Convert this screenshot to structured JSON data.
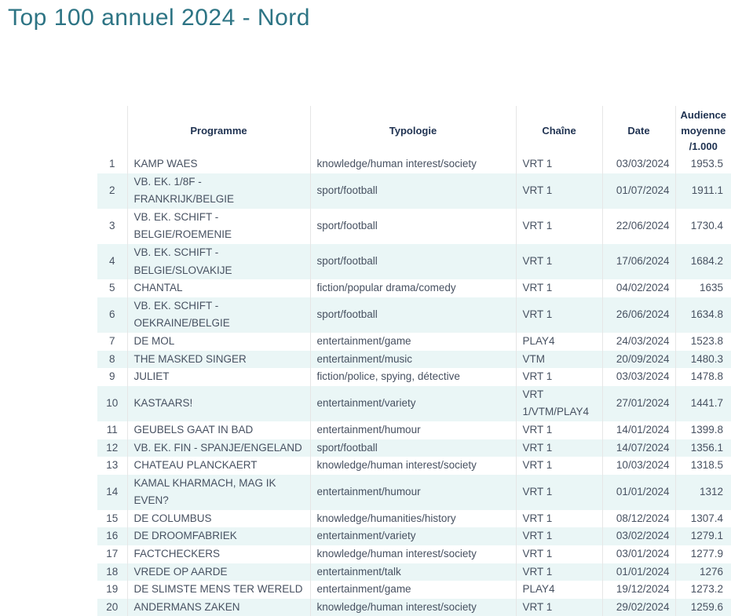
{
  "page": {
    "title": "Top 100 annuel 2024 - Nord"
  },
  "colors": {
    "title": "#2d7484",
    "header_text": "#1f3251",
    "body_text": "#475161",
    "row_alt_bg": "#eaf6f6",
    "column_border": "#e6e6e6"
  },
  "table": {
    "columns": [
      {
        "key": "rank",
        "label": ""
      },
      {
        "key": "programme",
        "label": "Programme"
      },
      {
        "key": "typologie",
        "label": "Typologie"
      },
      {
        "key": "chaine",
        "label": "Chaîne"
      },
      {
        "key": "date",
        "label": "Date"
      },
      {
        "key": "audience",
        "label": "Audience moyenne /1.000"
      }
    ],
    "rows": [
      {
        "rank": "1",
        "programme": "KAMP WAES",
        "typologie": "knowledge/human interest/society",
        "chaine": "VRT 1",
        "date": "03/03/2024",
        "audience": "1953.5"
      },
      {
        "rank": "2",
        "programme": "VB. EK. 1/8F -\nFRANKRIJK/BELGIE",
        "typologie": "sport/football",
        "chaine": "VRT 1",
        "date": "01/07/2024",
        "audience": "1911.1"
      },
      {
        "rank": "3",
        "programme": "VB. EK. SCHIFT -\nBELGIE/ROEMENIE",
        "typologie": "sport/football",
        "chaine": "VRT 1",
        "date": "22/06/2024",
        "audience": "1730.4"
      },
      {
        "rank": "4",
        "programme": "VB. EK. SCHIFT -\nBELGIE/SLOVAKIJE",
        "typologie": "sport/football",
        "chaine": "VRT 1",
        "date": "17/06/2024",
        "audience": "1684.2"
      },
      {
        "rank": "5",
        "programme": "CHANTAL",
        "typologie": "fiction/popular drama/comedy",
        "chaine": "VRT 1",
        "date": "04/02/2024",
        "audience": "1635"
      },
      {
        "rank": "6",
        "programme": "VB. EK. SCHIFT -\nOEKRAINE/BELGIE",
        "typologie": "sport/football",
        "chaine": "VRT 1",
        "date": "26/06/2024",
        "audience": "1634.8"
      },
      {
        "rank": "7",
        "programme": "DE MOL",
        "typologie": "entertainment/game",
        "chaine": "PLAY4",
        "date": "24/03/2024",
        "audience": "1523.8"
      },
      {
        "rank": "8",
        "programme": "THE MASKED SINGER",
        "typologie": "entertainment/music",
        "chaine": "VTM",
        "date": "20/09/2024",
        "audience": "1480.3"
      },
      {
        "rank": "9",
        "programme": "JULIET",
        "typologie": "fiction/police, spying, détective",
        "chaine": "VRT 1",
        "date": "03/03/2024",
        "audience": "1478.8"
      },
      {
        "rank": "10",
        "programme": "KASTAARS!",
        "typologie": "entertainment/variety",
        "chaine": "VRT\n1/VTM/PLAY4",
        "date": "27/01/2024",
        "audience": "1441.7"
      },
      {
        "rank": "11",
        "programme": "GEUBELS GAAT IN BAD",
        "typologie": "entertainment/humour",
        "chaine": "VRT 1",
        "date": "14/01/2024",
        "audience": "1399.8"
      },
      {
        "rank": "12",
        "programme": "VB. EK. FIN - SPANJE/ENGELAND",
        "typologie": "sport/football",
        "chaine": "VRT 1",
        "date": "14/07/2024",
        "audience": "1356.1"
      },
      {
        "rank": "13",
        "programme": "CHATEAU PLANCKAERT",
        "typologie": "knowledge/human interest/society",
        "chaine": "VRT 1",
        "date": "10/03/2024",
        "audience": "1318.5"
      },
      {
        "rank": "14",
        "programme": "KAMAL KHARMACH, MAG IK\nEVEN?",
        "typologie": "entertainment/humour",
        "chaine": "VRT 1",
        "date": "01/01/2024",
        "audience": "1312"
      },
      {
        "rank": "15",
        "programme": "DE COLUMBUS",
        "typologie": "knowledge/humanities/history",
        "chaine": "VRT 1",
        "date": "08/12/2024",
        "audience": "1307.4"
      },
      {
        "rank": "16",
        "programme": "DE DROOMFABRIEK",
        "typologie": "entertainment/variety",
        "chaine": "VRT 1",
        "date": "03/02/2024",
        "audience": "1279.1"
      },
      {
        "rank": "17",
        "programme": "FACTCHECKERS",
        "typologie": "knowledge/human interest/society",
        "chaine": "VRT 1",
        "date": "03/01/2024",
        "audience": "1277.9"
      },
      {
        "rank": "18",
        "programme": "VREDE OP AARDE",
        "typologie": "entertainment/talk",
        "chaine": "VRT 1",
        "date": "01/01/2024",
        "audience": "1276"
      },
      {
        "rank": "19",
        "programme": "DE SLIMSTE MENS TER WERELD",
        "typologie": "entertainment/game",
        "chaine": "PLAY4",
        "date": "19/12/2024",
        "audience": "1273.2"
      },
      {
        "rank": "20",
        "programme": "ANDERMANS ZAKEN",
        "typologie": "knowledge/human interest/society",
        "chaine": "VRT 1",
        "date": "29/02/2024",
        "audience": "1259.6"
      }
    ]
  }
}
